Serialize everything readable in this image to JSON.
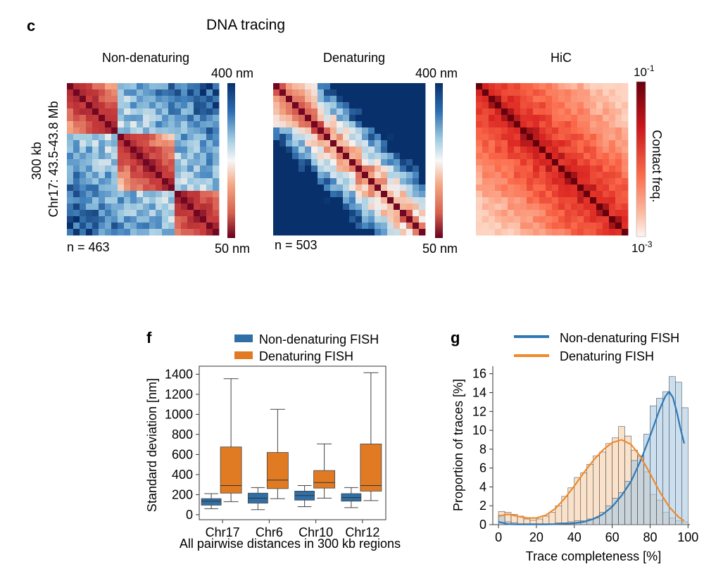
{
  "panel_c": {
    "label": "c",
    "title": "DNA tracing",
    "row_label_line1": "300 kb",
    "row_label_line2": "Chr17: 43.5-43.8 Mb",
    "heatmaps": [
      {
        "title": "Non-denaturing",
        "n_label": "n = 463",
        "cbar_top": "400 nm",
        "cbar_bottom": "50 nm",
        "scheme": "distance",
        "pattern": "tad"
      },
      {
        "title": "Denaturing",
        "n_label": "n = 503",
        "cbar_top": "400 nm",
        "cbar_bottom": "50 nm",
        "scheme": "distance",
        "pattern": "denat"
      },
      {
        "title": "HiC",
        "n_label": "",
        "cbar_top_base": "10",
        "cbar_top_exp": "-1",
        "cbar_bottom_base": "10",
        "cbar_bottom_exp": "-3",
        "cbar_label": "Contact freq.",
        "scheme": "contact",
        "pattern": "hic"
      }
    ]
  },
  "chart_data": [
    {
      "panel": "f",
      "type": "box",
      "xlabel": "All pairwise distances in 300 kb regions",
      "ylabel": "Standard deviation [nm]",
      "ylim": [
        -50,
        1480
      ],
      "yticks": [
        0,
        200,
        400,
        600,
        800,
        1000,
        1200,
        1400
      ],
      "categories": [
        "Chr17",
        "Chr6",
        "Chr10",
        "Chr12"
      ],
      "legend": [
        "Non-denaturing FISH",
        "Denaturing FISH"
      ],
      "colors": {
        "non_denaturing": "#2f6fa6",
        "denaturing": "#e07b24"
      },
      "series": [
        {
          "name": "Non-denaturing FISH",
          "boxes": [
            {
              "min": 60,
              "q1": 95,
              "median": 135,
              "q3": 160,
              "max": 210
            },
            {
              "min": 50,
              "q1": 115,
              "median": 165,
              "q3": 215,
              "max": 270
            },
            {
              "min": 80,
              "q1": 145,
              "median": 190,
              "q3": 235,
              "max": 290
            },
            {
              "min": 70,
              "q1": 135,
              "median": 170,
              "q3": 210,
              "max": 270
            }
          ]
        },
        {
          "name": "Denaturing FISH",
          "boxes": [
            {
              "min": 130,
              "q1": 215,
              "median": 290,
              "q3": 675,
              "max": 1355
            },
            {
              "min": 160,
              "q1": 260,
              "median": 345,
              "q3": 620,
              "max": 1050
            },
            {
              "min": 165,
              "q1": 265,
              "median": 320,
              "q3": 440,
              "max": 705
            },
            {
              "min": 140,
              "q1": 235,
              "median": 290,
              "q3": 705,
              "max": 1415
            }
          ]
        }
      ]
    },
    {
      "panel": "g",
      "type": "histogram",
      "xlabel": "Trace completeness [%]",
      "ylabel": "Proportion of traces [%]",
      "xlim": [
        -3,
        101
      ],
      "ylim": [
        0,
        16.8
      ],
      "xticks": [
        0,
        20,
        40,
        60,
        80,
        100
      ],
      "yticks": [
        0,
        2,
        4,
        6,
        8,
        10,
        12,
        14,
        16
      ],
      "legend": [
        "Non-denaturing FISH",
        "Denaturing FISH"
      ],
      "colors": {
        "non_denaturing": "#2f78b5",
        "denaturing": "#f08a2a",
        "non_denaturing_fill": "#a9c9e4",
        "denaturing_fill": "#f6cfa6"
      },
      "bin_width": 3.33,
      "bin_starts": [
        0,
        3.33,
        6.67,
        10,
        13.33,
        16.67,
        20,
        23.33,
        26.67,
        30,
        33.33,
        36.67,
        40,
        43.33,
        46.67,
        50,
        53.33,
        56.67,
        60,
        63.33,
        66.67,
        70,
        73.33,
        76.67,
        80,
        83.33,
        86.67,
        90,
        93.33,
        96.67
      ],
      "series": [
        {
          "name": "Denaturing FISH",
          "values": [
            1.4,
            1.3,
            1.1,
            0.9,
            0.6,
            0.5,
            0.6,
            0.9,
            1.3,
            2.0,
            3.0,
            3.9,
            5.0,
            5.5,
            6.4,
            7.3,
            7.7,
            8.6,
            9.2,
            10.4,
            9.4,
            7.9,
            7.3,
            5.6,
            3.2,
            2.6,
            1.3,
            0.7,
            0.4,
            0.3
          ]
        },
        {
          "name": "Non-denaturing FISH",
          "values": [
            1.0,
            0.3,
            0.2,
            0.1,
            0.1,
            0.1,
            0.1,
            0.1,
            0.1,
            0.2,
            0.2,
            0.3,
            0.4,
            0.4,
            0.6,
            0.7,
            1.3,
            2.0,
            2.8,
            3.4,
            4.6,
            6.8,
            7.3,
            9.6,
            12.6,
            13.4,
            14.1,
            15.7,
            15.1,
            12.4
          ]
        }
      ],
      "kde": [
        {
          "name": "Non-denaturing FISH",
          "x": [
            0,
            5,
            10,
            15,
            20,
            25,
            30,
            35,
            40,
            45,
            50,
            55,
            60,
            65,
            70,
            75,
            80,
            85,
            88,
            90,
            92,
            94,
            96,
            98
          ],
          "y": [
            0.3,
            0.05,
            0.02,
            0.02,
            0.02,
            0.03,
            0.05,
            0.08,
            0.15,
            0.3,
            0.6,
            1.1,
            1.9,
            3.1,
            4.6,
            6.8,
            9.4,
            12.2,
            13.6,
            14.1,
            13.5,
            12.0,
            10.2,
            8.6
          ]
        },
        {
          "name": "Denaturing FISH",
          "x": [
            0,
            5,
            10,
            15,
            20,
            25,
            30,
            35,
            40,
            45,
            50,
            55,
            60,
            65,
            70,
            75,
            80,
            85,
            90,
            95,
            98
          ],
          "y": [
            0.9,
            1.1,
            0.9,
            0.7,
            0.7,
            1.0,
            1.7,
            2.8,
            4.1,
            5.5,
            6.8,
            7.9,
            8.7,
            9.0,
            8.5,
            7.2,
            5.4,
            3.5,
            1.9,
            0.8,
            0.4
          ]
        }
      ]
    }
  ]
}
